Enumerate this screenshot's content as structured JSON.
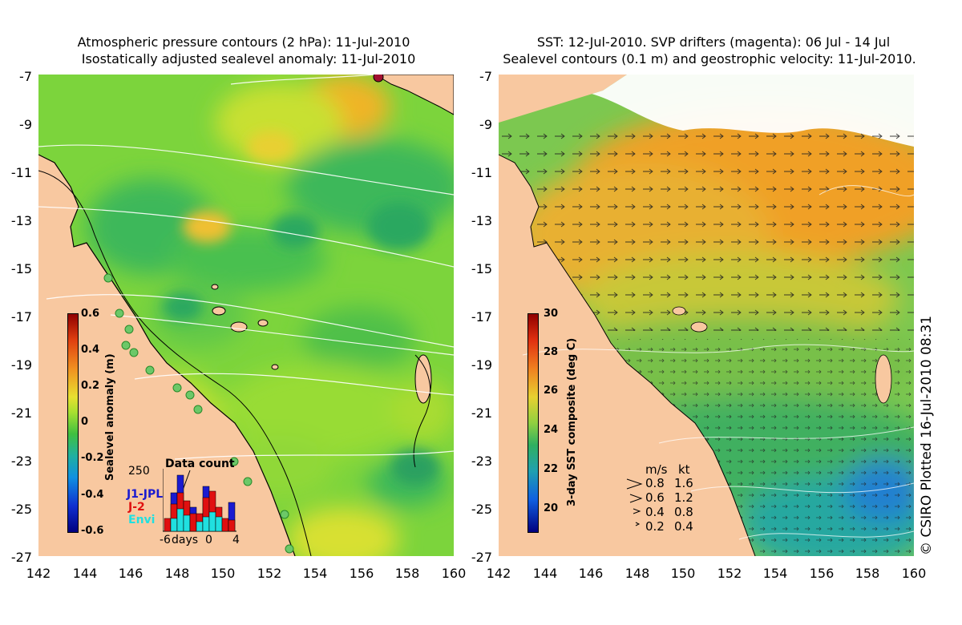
{
  "left_panel": {
    "title_line1": "Atmospheric pressure contours (2 hPa): 11-Jul-2010",
    "title_line2": "Isostatically adjusted sealevel anomaly: 11-Jul-2010",
    "colorbar": {
      "label": "Sealevel anomaly (m)",
      "ticks": [
        "0.6",
        "0.4",
        "0.2",
        "0",
        "-0.2",
        "-0.4",
        "-0.6"
      ]
    },
    "data_count": {
      "title": "Data count",
      "max_label": "250",
      "x_labels": [
        "-6",
        "days",
        "0",
        "4"
      ],
      "legend": [
        {
          "name": "J1-JPL",
          "color": "#1a1ad0"
        },
        {
          "name": "J-2",
          "color": "#e01010"
        },
        {
          "name": "Envi",
          "color": "#20e0e0"
        }
      ]
    }
  },
  "right_panel": {
    "title_line1": "SST: 12-Jul-2010. SVP drifters (magenta): 06 Jul - 14 Jul",
    "title_line2": "Sealevel contours (0.1 m) and geostrophic velocity: 11-Jul-2010.",
    "colorbar": {
      "label": "3-day SST composite (deg C)",
      "ticks": [
        "30",
        "28",
        "26",
        "24",
        "22",
        "20"
      ]
    },
    "velocity_legend": {
      "header_ms": "m/s",
      "header_kt": "kt",
      "rows": [
        {
          "ms": "0.8",
          "kt": "1.6"
        },
        {
          "ms": "0.6",
          "kt": "1.2"
        },
        {
          "ms": "0.4",
          "kt": "0.8"
        },
        {
          "ms": "0.2",
          "kt": "0.4"
        }
      ]
    }
  },
  "axes": {
    "lat_ticks": [
      "-7",
      "-9",
      "-11",
      "-13",
      "-15",
      "-17",
      "-19",
      "-21",
      "-23",
      "-25",
      "-27"
    ],
    "lon_ticks": [
      "142",
      "144",
      "146",
      "148",
      "150",
      "152",
      "154",
      "156",
      "158",
      "160"
    ]
  },
  "credit": "© CSIRO Plotted 16-Jul-2010 08:31",
  "colors": {
    "land": "#f8c8a0",
    "sla_green": "#7cd43c",
    "sla_yellow": "#d8e830",
    "sst_orange": "#f0a030",
    "sst_green": "#40b040"
  }
}
